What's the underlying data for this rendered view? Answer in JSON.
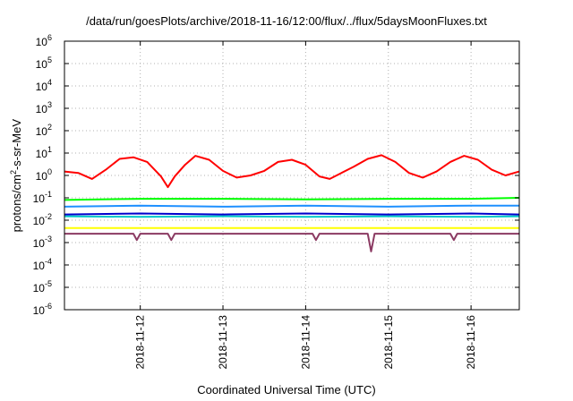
{
  "chart_data": {
    "type": "line",
    "title": "/data/run/goesPlots/archive/2018-11-16/12:00/flux/../flux/5daysMoonFluxes.txt",
    "xlabel": "Coordinated Universal Time (UTC)",
    "ylabel": {
      "base": "protons/cm",
      "exp": "2",
      "rest": "-s-sr-MeV"
    },
    "yscale": "log",
    "ylim_exp": [
      -6,
      6
    ],
    "yticks": [
      {
        "base": "10",
        "exp": "6"
      },
      {
        "base": "10",
        "exp": "5"
      },
      {
        "base": "10",
        "exp": "4"
      },
      {
        "base": "10",
        "exp": "3"
      },
      {
        "base": "10",
        "exp": "2"
      },
      {
        "base": "10",
        "exp": "1"
      },
      {
        "base": "10",
        "exp": "0"
      },
      {
        "base": "10",
        "exp": "-1"
      },
      {
        "base": "10",
        "exp": "-2"
      },
      {
        "base": "10",
        "exp": "-3"
      },
      {
        "base": "10",
        "exp": "-4"
      },
      {
        "base": "10",
        "exp": "-5"
      },
      {
        "base": "10",
        "exp": "-6"
      }
    ],
    "xlim": [
      "2018-11-11T02:00",
      "2018-11-16T14:00"
    ],
    "xticks": [
      "2018-11-12",
      "2018-11-13",
      "2018-11-14",
      "2018-11-15",
      "2018-11-16"
    ],
    "grid": true,
    "series": [
      {
        "color": "#ff0000",
        "x": [
          "2018-11-11T02:00",
          "2018-11-11T06:00",
          "2018-11-11T10:00",
          "2018-11-11T14:00",
          "2018-11-11T18:00",
          "2018-11-11T22:00",
          "2018-11-12T02:00",
          "2018-11-12T06:00",
          "2018-11-12T08:00",
          "2018-11-12T10:00",
          "2018-11-12T13:00",
          "2018-11-12T16:00",
          "2018-11-12T20:00",
          "2018-11-13T00:00",
          "2018-11-13T04:00",
          "2018-11-13T08:00",
          "2018-11-13T12:00",
          "2018-11-13T16:00",
          "2018-11-13T20:00",
          "2018-11-14T00:00",
          "2018-11-14T04:00",
          "2018-11-14T07:00",
          "2018-11-14T10:00",
          "2018-11-14T14:00",
          "2018-11-14T18:00",
          "2018-11-14T22:00",
          "2018-11-15T02:00",
          "2018-11-15T06:00",
          "2018-11-15T10:00",
          "2018-11-15T14:00",
          "2018-11-15T18:00",
          "2018-11-15T22:00",
          "2018-11-16T02:00",
          "2018-11-16T06:00",
          "2018-11-16T10:00",
          "2018-11-16T14:00"
        ],
        "y": [
          1.5,
          1.3,
          0.7,
          1.8,
          5.5,
          6.5,
          4.0,
          0.9,
          0.3,
          0.9,
          3.0,
          7.5,
          5.0,
          1.6,
          0.8,
          1.0,
          1.6,
          4.0,
          5.0,
          3.0,
          0.9,
          0.7,
          1.2,
          2.5,
          5.5,
          8.0,
          4.0,
          1.3,
          0.8,
          1.5,
          4.0,
          7.5,
          5.0,
          1.8,
          1.0,
          1.5
        ]
      },
      {
        "color": "#00ff00",
        "x": [
          "2018-11-11T02:00",
          "2018-11-12T00:00",
          "2018-11-13T00:00",
          "2018-11-14T00:00",
          "2018-11-15T00:00",
          "2018-11-16T00:00",
          "2018-11-16T14:00"
        ],
        "y": [
          0.08,
          0.09,
          0.09,
          0.085,
          0.09,
          0.09,
          0.1
        ]
      },
      {
        "color": "#1e90ff",
        "x": [
          "2018-11-11T02:00",
          "2018-11-12T00:00",
          "2018-11-13T00:00",
          "2018-11-14T00:00",
          "2018-11-15T00:00",
          "2018-11-16T00:00",
          "2018-11-16T14:00"
        ],
        "y": [
          0.04,
          0.045,
          0.04,
          0.045,
          0.04,
          0.045,
          0.045
        ]
      },
      {
        "color": "#00c8c8",
        "x": [
          "2018-11-11T02:00",
          "2018-11-12T00:00",
          "2018-11-13T00:00",
          "2018-11-14T00:00",
          "2018-11-15T00:00",
          "2018-11-16T00:00",
          "2018-11-16T14:00"
        ],
        "y": [
          0.015,
          0.014,
          0.015,
          0.014,
          0.015,
          0.014,
          0.015
        ]
      },
      {
        "color": "#0000cd",
        "x": [
          "2018-11-11T02:00",
          "2018-11-12T00:00",
          "2018-11-13T00:00",
          "2018-11-14T00:00",
          "2018-11-15T00:00",
          "2018-11-16T00:00",
          "2018-11-16T14:00"
        ],
        "y": [
          0.018,
          0.02,
          0.018,
          0.02,
          0.018,
          0.02,
          0.018
        ]
      },
      {
        "color": "#ffff00",
        "x": [
          "2018-11-11T02:00",
          "2018-11-12T00:00",
          "2018-11-13T00:00",
          "2018-11-14T00:00",
          "2018-11-15T00:00",
          "2018-11-16T00:00",
          "2018-11-16T14:00"
        ],
        "y": [
          0.0045,
          0.0045,
          0.0045,
          0.0045,
          0.0045,
          0.0045,
          0.0045
        ]
      },
      {
        "color": "#8b3a62",
        "x": [
          "2018-11-11T02:00",
          "2018-11-11T18:00",
          "2018-11-11T22:00",
          "2018-11-11T23:00",
          "2018-11-12T00:00",
          "2018-11-12T08:00",
          "2018-11-12T09:00",
          "2018-11-12T10:00",
          "2018-11-14T02:00",
          "2018-11-14T03:00",
          "2018-11-14T04:00",
          "2018-11-14T18:00",
          "2018-11-14T19:00",
          "2018-11-14T20:00",
          "2018-11-15T18:00",
          "2018-11-15T19:00",
          "2018-11-15T20:00",
          "2018-11-16T14:00"
        ],
        "y": [
          0.0025,
          0.0025,
          0.0025,
          0.0013,
          0.0025,
          0.0025,
          0.0013,
          0.0025,
          0.0025,
          0.0013,
          0.0025,
          0.0025,
          0.0004,
          0.0025,
          0.0025,
          0.0013,
          0.0025,
          0.0025
        ]
      }
    ]
  }
}
